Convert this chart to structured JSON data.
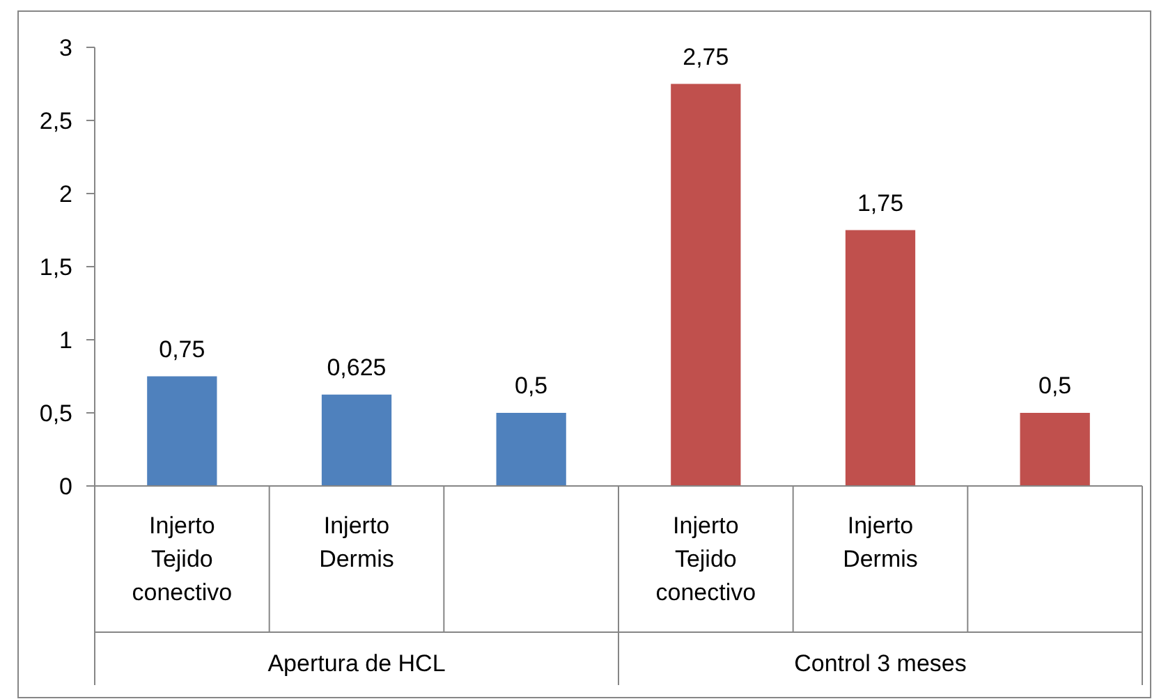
{
  "chart_data": {
    "type": "bar",
    "categories": [
      "Injerto Tejido conectivo",
      "Injerto Dermis",
      null,
      "Injerto Tejido conectivo",
      "Injerto Dermis",
      null
    ],
    "values": [
      0.75,
      0.625,
      0.5,
      2.75,
      1.75,
      0.5
    ],
    "colors": [
      "#4f81bd",
      "#4f81bd",
      "#4f81bd",
      "#c0504d",
      "#c0504d",
      "#c0504d"
    ],
    "ylim": [
      0,
      3
    ],
    "yticks": [
      0,
      {
        "value": 0.5,
        "label": "0,5"
      },
      1,
      {
        "value": 1.5,
        "label": "1,5"
      },
      2,
      {
        "value": 2.5,
        "label": "2,5"
      },
      3
    ],
    "value_labels": [
      "0,75",
      "0,625",
      "0,5",
      "2,75",
      "1,75",
      "0,5"
    ],
    "annotations": [
      "Apertura de HCL",
      "Control 3 meses"
    ]
  }
}
